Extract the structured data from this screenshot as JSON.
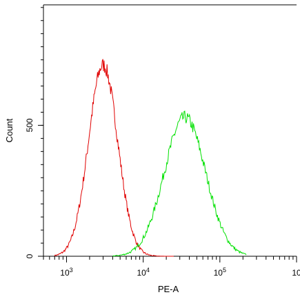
{
  "chart_data": {
    "type": "histogram-overlay",
    "title": "",
    "xlabel": "PE-A",
    "ylabel": "Count",
    "x_scale": "log",
    "xlim": [
      500,
      1000000
    ],
    "ylim": [
      0,
      960
    ],
    "x_ticks": [
      {
        "value": 1000,
        "base": "10",
        "exp": "3"
      },
      {
        "value": 10000,
        "base": "10",
        "exp": "4"
      },
      {
        "value": 100000,
        "base": "10",
        "exp": "5"
      },
      {
        "value": 1000000,
        "base": "10",
        "exp": ""
      }
    ],
    "y_ticks": [
      {
        "value": 0,
        "label": "0"
      },
      {
        "value": 500,
        "label": "500"
      }
    ],
    "grid": false,
    "legend": "none",
    "series": [
      {
        "color": "#e00000",
        "peak_x": 3000,
        "peak_y": 730,
        "sigma_log10": 0.19,
        "points": [
          [
            700,
            0
          ],
          [
            900,
            12
          ],
          [
            1100,
            40
          ],
          [
            1400,
            140
          ],
          [
            1700,
            300
          ],
          [
            2000,
            460
          ],
          [
            2300,
            600
          ],
          [
            2600,
            690
          ],
          [
            2900,
            720
          ],
          [
            3200,
            715
          ],
          [
            3600,
            650
          ],
          [
            4200,
            520
          ],
          [
            5000,
            360
          ],
          [
            6000,
            220
          ],
          [
            7500,
            110
          ],
          [
            9000,
            60
          ],
          [
            12000,
            25
          ],
          [
            17000,
            10
          ],
          [
            25000,
            0
          ]
        ]
      },
      {
        "color": "#00e000",
        "peak_x": 35000,
        "peak_y": 530,
        "sigma_log10": 0.27,
        "points": [
          [
            4000,
            0
          ],
          [
            6000,
            8
          ],
          [
            8000,
            25
          ],
          [
            10000,
            55
          ],
          [
            13000,
            110
          ],
          [
            16000,
            180
          ],
          [
            20000,
            270
          ],
          [
            25000,
            380
          ],
          [
            30000,
            470
          ],
          [
            35000,
            525
          ],
          [
            40000,
            510
          ],
          [
            50000,
            420
          ],
          [
            62000,
            300
          ],
          [
            80000,
            160
          ],
          [
            100000,
            70
          ],
          [
            130000,
            22
          ],
          [
            170000,
            5
          ],
          [
            220000,
            0
          ]
        ]
      }
    ]
  }
}
